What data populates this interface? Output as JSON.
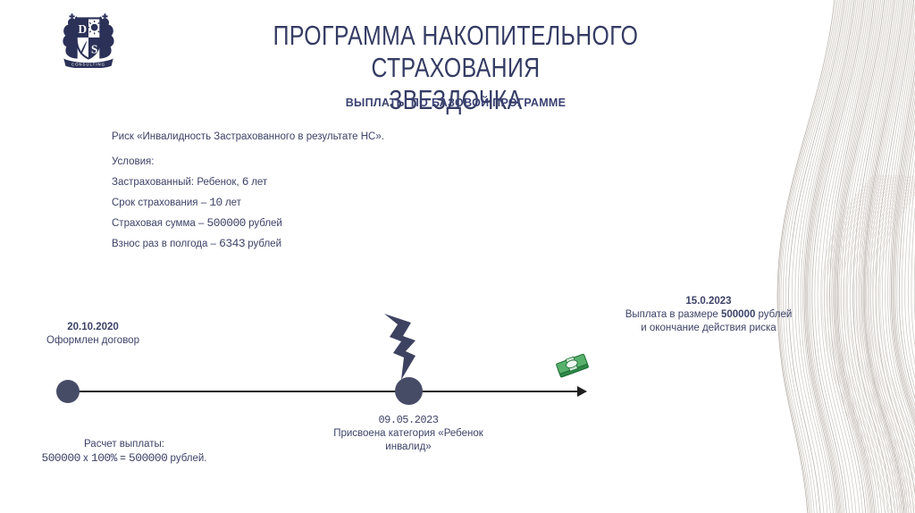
{
  "slide": {
    "title_line1": "ПРОГРАММА НАКОПИТЕЛЬНОГО СТРАХОВАНИЯ",
    "title_line2": "ЗВЕЗДОЧКА",
    "subtitle": "ВЫПЛАТЫ ПО БАЗОВОЙ ПРОГРАММЕ"
  },
  "logo": {
    "letter_d": "D",
    "letter_s": "S",
    "banner": "CONSULTING"
  },
  "conditions": {
    "risk": "Риск «Инвалидность Застрахованного в результате НС».",
    "heading": "Условия:",
    "items": [
      {
        "pre": "Застрахованный: Ребенок, ",
        "num": "6",
        "post": " лет"
      },
      {
        "pre": "Срок страхования – ",
        "num": "10",
        "post": " лет"
      },
      {
        "pre": "Страховая сумма – ",
        "num": "500000",
        "post": " рублей"
      },
      {
        "pre": "Взнос раз в полгода – ",
        "num": "6343",
        "post": " рублей"
      }
    ]
  },
  "timeline": {
    "event_start": {
      "date": "20.10.2020",
      "label": "Оформлен договор"
    },
    "event_mid": {
      "date": "09.05.2023",
      "label_line1": "Присвоена категория «Ребенок",
      "label_line2": "инвалид»"
    },
    "event_end": {
      "date": "15.0.2023",
      "line2_pre": "Выплата в размере ",
      "amount": "500000",
      "line2_post": " рублей",
      "line3": "и окончание действия риска"
    }
  },
  "calc": {
    "title": "Расчет выплаты:",
    "f1": "500000",
    "f2": " х ",
    "f3": "100%",
    "f4": " = ",
    "f5": "500000",
    "f6": " рублей."
  },
  "icons": {
    "lightning": "bolt-shape",
    "money": "banknote-stack",
    "logo": "heraldic-crest"
  },
  "colors": {
    "accent_navy": "#343B63",
    "dot_navy": "#474C66",
    "line_black": "#1F1F1F",
    "money_green": "#4CAF6D",
    "texture_gray": "#CBC4BE"
  }
}
